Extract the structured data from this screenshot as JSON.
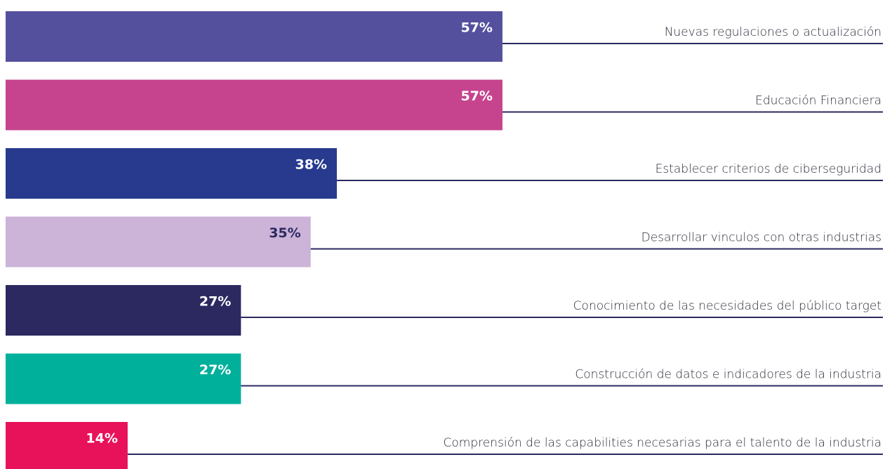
{
  "chart_data": {
    "type": "bar",
    "orientation": "horizontal",
    "categories": [
      "Nuevas regulaciones o actualización",
      "Educación Financiera",
      "Establecer criterios de ciberseguridad",
      "Desarrollar vinculos con otras industrias",
      "Conocimiento de las necesidades del público target",
      "Construcción de datos e indicadores de la industria",
      "Comprensión de las capabilities necesarias para el talento de la industria"
    ],
    "values": [
      57,
      57,
      38,
      35,
      27,
      27,
      14
    ],
    "value_labels": [
      "57%",
      "57%",
      "38%",
      "35%",
      "27%",
      "27%",
      "14%"
    ],
    "colors": [
      "#55509e",
      "#c6448e",
      "#273a8e",
      "#ccb3d8",
      "#2b2960",
      "#00b09b",
      "#e8125a"
    ],
    "label_colors": [
      "#ffffff",
      "#ffffff",
      "#ffffff",
      "#2b2960",
      "#ffffff",
      "#ffffff",
      "#ffffff"
    ],
    "xlim": [
      0,
      100
    ]
  }
}
